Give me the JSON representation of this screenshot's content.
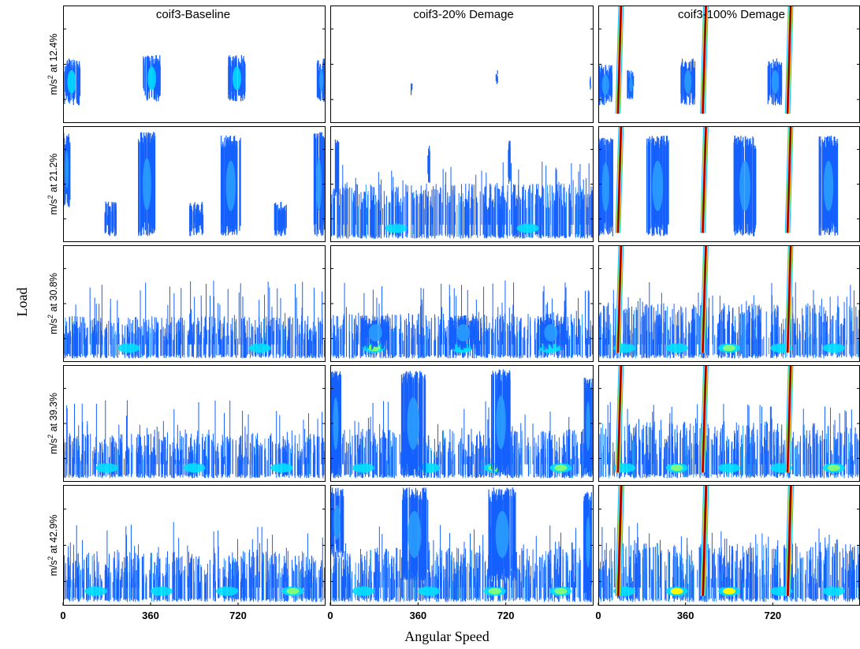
{
  "chart_data": {
    "type": "heatmap",
    "description_visible": "Grid of wavelet scalograms (5 load rows x 3 damage columns)",
    "column_titles": [
      "coif3-Baseline",
      "coif3-20% Demage",
      "coif3-100% Demage"
    ],
    "row_labels": [
      {
        "unit": "m/s",
        "sup": "2",
        "text": " at 12.4%"
      },
      {
        "unit": "m/s",
        "sup": "2",
        "text": " at 21.2%"
      },
      {
        "unit": "m/s",
        "sup": "2",
        "text": " at 30.8%"
      },
      {
        "unit": "m/s",
        "sup": "2",
        "text": " at 39.3%"
      },
      {
        "unit": "m/s",
        "sup": "2",
        "text": " at 42.9%"
      }
    ],
    "xlabel": "Angular Speed",
    "ylabel": "Load",
    "xlim": [
      0,
      1080
    ],
    "x_ticks": [
      0,
      360,
      720
    ],
    "colormap": [
      "#1560ff",
      "#2aa0ff",
      "#00e0ff",
      "#7fff7f",
      "#ffff00",
      "#ff8000",
      "#e00000",
      "#8b0000"
    ],
    "panels": [
      [
        {
          "col": 0,
          "row": 0,
          "intensity": 0.35,
          "bursts": [
            {
              "x": 0,
              "w": 70,
              "top": 0.45,
              "bot": 0.85,
              "peak": 2
            },
            {
              "x": 330,
              "w": 70,
              "top": 0.42,
              "bot": 0.82,
              "peak": 2
            },
            {
              "x": 680,
              "w": 70,
              "top": 0.42,
              "bot": 0.82,
              "peak": 2
            },
            {
              "x": 1045,
              "w": 35,
              "top": 0.45,
              "bot": 0.82,
              "peak": 1
            }
          ],
          "base_band": 0.0,
          "spikes": []
        },
        {
          "col": 1,
          "row": 0,
          "intensity": 0.1,
          "bursts": [
            {
              "x": 330,
              "w": 6,
              "top": 0.65,
              "bot": 0.75,
              "peak": 0
            },
            {
              "x": 680,
              "w": 6,
              "top": 0.55,
              "bot": 0.7,
              "peak": 0
            },
            {
              "x": 1065,
              "w": 6,
              "top": 0.6,
              "bot": 0.72,
              "peak": 0
            }
          ],
          "base_band": 0.0,
          "spikes": []
        },
        {
          "col": 2,
          "row": 0,
          "intensity": 0.8,
          "bursts": [
            {
              "x": 0,
              "w": 60,
              "top": 0.5,
              "bot": 0.85,
              "peak": 1
            },
            {
              "x": 120,
              "w": 30,
              "top": 0.55,
              "bot": 0.8,
              "peak": 1
            },
            {
              "x": 340,
              "w": 60,
              "top": 0.45,
              "bot": 0.85,
              "peak": 1
            },
            {
              "x": 700,
              "w": 60,
              "top": 0.45,
              "bot": 0.85,
              "peak": 1
            }
          ],
          "base_band": 0.0,
          "spikes": [
            {
              "x": 70,
              "w": 22,
              "peak": 7
            },
            {
              "x": 420,
              "w": 22,
              "peak": 7
            },
            {
              "x": 770,
              "w": 22,
              "peak": 7
            }
          ]
        }
      ],
      [
        {
          "col": 0,
          "row": 1,
          "intensity": 0.5,
          "bursts": [
            {
              "x": 0,
              "w": 30,
              "top": 0.05,
              "bot": 0.7,
              "peak": 1
            },
            {
              "x": 310,
              "w": 70,
              "top": 0.05,
              "bot": 0.95,
              "peak": 1
            },
            {
              "x": 650,
              "w": 80,
              "top": 0.08,
              "bot": 0.95,
              "peak": 1
            },
            {
              "x": 1030,
              "w": 45,
              "top": 0.05,
              "bot": 0.95,
              "peak": 1
            },
            {
              "x": 170,
              "w": 50,
              "top": 0.65,
              "bot": 0.95,
              "peak": 0
            },
            {
              "x": 520,
              "w": 60,
              "top": 0.65,
              "bot": 0.95,
              "peak": 0
            },
            {
              "x": 870,
              "w": 50,
              "top": 0.65,
              "bot": 0.95,
              "peak": 0
            }
          ],
          "base_band": 0.0,
          "spikes": []
        },
        {
          "col": 1,
          "row": 1,
          "intensity": 0.4,
          "bursts": [
            {
              "x": 20,
              "w": 15,
              "top": 0.1,
              "bot": 0.6,
              "peak": 0
            },
            {
              "x": 400,
              "w": 10,
              "top": 0.15,
              "bot": 0.5,
              "peak": 0
            },
            {
              "x": 730,
              "w": 10,
              "top": 0.1,
              "bot": 0.5,
              "peak": 0
            }
          ],
          "base_band": 0.72,
          "spikes": []
        },
        {
          "col": 2,
          "row": 1,
          "intensity": 0.8,
          "bursts": [
            {
              "x": 0,
              "w": 60,
              "top": 0.1,
              "bot": 0.95,
              "peak": 1
            },
            {
              "x": 200,
              "w": 90,
              "top": 0.08,
              "bot": 0.95,
              "peak": 1
            },
            {
              "x": 560,
              "w": 90,
              "top": 0.08,
              "bot": 0.95,
              "peak": 1
            },
            {
              "x": 910,
              "w": 80,
              "top": 0.08,
              "bot": 0.95,
              "peak": 1
            }
          ],
          "base_band": 0.0,
          "spikes": [
            {
              "x": 70,
              "w": 22,
              "peak": 7
            },
            {
              "x": 420,
              "w": 22,
              "peak": 7
            },
            {
              "x": 770,
              "w": 22,
              "peak": 7
            }
          ]
        }
      ],
      [
        {
          "col": 0,
          "row": 2,
          "intensity": 0.35,
          "bursts": [],
          "base_band": 0.82,
          "spikes": []
        },
        {
          "col": 1,
          "row": 2,
          "intensity": 0.45,
          "bursts": [
            {
              "x": 130,
              "w": 110,
              "top": 0.6,
              "bot": 0.9,
              "peak": 1
            },
            {
              "x": 490,
              "w": 110,
              "top": 0.6,
              "bot": 0.9,
              "peak": 1
            },
            {
              "x": 850,
              "w": 110,
              "top": 0.6,
              "bot": 0.9,
              "peak": 1
            }
          ],
          "base_band": 0.82,
          "spikes": []
        },
        {
          "col": 2,
          "row": 2,
          "intensity": 0.8,
          "bursts": [],
          "base_band": 0.82,
          "spikes": [
            {
              "x": 70,
              "w": 22,
              "peak": 7
            },
            {
              "x": 420,
              "w": 22,
              "peak": 7
            },
            {
              "x": 770,
              "w": 22,
              "peak": 7
            }
          ]
        }
      ],
      [
        {
          "col": 0,
          "row": 3,
          "intensity": 0.45,
          "bursts": [],
          "base_band": 0.82,
          "spikes": []
        },
        {
          "col": 1,
          "row": 3,
          "intensity": 0.6,
          "bursts": [
            {
              "x": 0,
              "w": 45,
              "top": 0.05,
              "bot": 0.95,
              "peak": 1
            },
            {
              "x": 290,
              "w": 100,
              "top": 0.05,
              "bot": 0.95,
              "peak": 1
            },
            {
              "x": 660,
              "w": 80,
              "top": 0.03,
              "bot": 0.95,
              "peak": 1
            },
            {
              "x": 1040,
              "w": 35,
              "top": 0.1,
              "bot": 0.95,
              "peak": 1
            }
          ],
          "base_band": 0.82,
          "spikes": []
        },
        {
          "col": 2,
          "row": 3,
          "intensity": 0.85,
          "bursts": [],
          "base_band": 0.82,
          "spikes": [
            {
              "x": 70,
              "w": 22,
              "peak": 7
            },
            {
              "x": 420,
              "w": 22,
              "peak": 7
            },
            {
              "x": 770,
              "w": 22,
              "peak": 7
            }
          ]
        }
      ],
      [
        {
          "col": 0,
          "row": 4,
          "intensity": 0.6,
          "bursts": [],
          "base_band": 0.82,
          "spikes": []
        },
        {
          "col": 1,
          "row": 4,
          "intensity": 0.7,
          "bursts": [
            {
              "x": 0,
              "w": 55,
              "top": 0.02,
              "bot": 0.6,
              "peak": 1
            },
            {
              "x": 290,
              "w": 110,
              "top": 0.02,
              "bot": 0.8,
              "peak": 1
            },
            {
              "x": 650,
              "w": 110,
              "top": 0.02,
              "bot": 0.8,
              "peak": 1
            },
            {
              "x": 1040,
              "w": 35,
              "top": 0.05,
              "bot": 0.9,
              "peak": 1
            }
          ],
          "base_band": 0.82,
          "spikes": []
        },
        {
          "col": 2,
          "row": 4,
          "intensity": 0.9,
          "bursts": [],
          "base_band": 0.82,
          "spikes": [
            {
              "x": 70,
              "w": 24,
              "peak": 7
            },
            {
              "x": 420,
              "w": 24,
              "peak": 7
            },
            {
              "x": 770,
              "w": 24,
              "peak": 7
            }
          ]
        }
      ]
    ]
  }
}
